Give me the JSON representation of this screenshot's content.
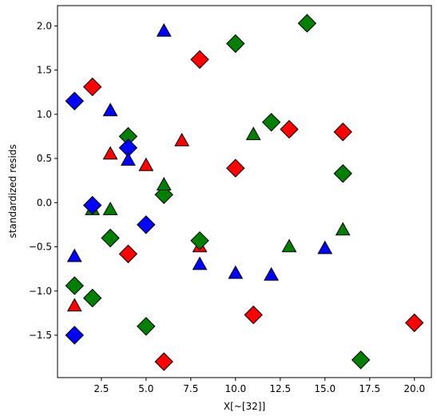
{
  "chart_data": {
    "type": "scatter",
    "xlabel": "X[~[32]]",
    "ylabel": "standardized resids",
    "xlim": [
      0.05,
      20.95
    ],
    "ylim": [
      -1.98,
      2.23
    ],
    "xticks": [
      2.5,
      5.0,
      7.5,
      10.0,
      12.5,
      15.0,
      17.5,
      20.0
    ],
    "xtick_labels": [
      "2.5",
      "5.0",
      "7.5",
      "10.0",
      "12.5",
      "15.0",
      "17.5",
      "20.0"
    ],
    "yticks": [
      -1.5,
      -1.0,
      -0.5,
      0.0,
      0.5,
      1.0,
      1.5,
      2.0
    ],
    "ytick_labels": [
      "−1.5",
      "−1.0",
      "−0.5",
      "0.0",
      "0.5",
      "1.0",
      "1.5",
      "2.0"
    ],
    "grid": false,
    "series": [
      {
        "color": "#ff0000",
        "marker": "diamond",
        "points": [
          [
            2,
            1.31
          ],
          [
            8,
            1.62
          ],
          [
            13,
            0.83
          ],
          [
            16,
            0.8
          ],
          [
            10,
            0.39
          ],
          [
            4,
            -0.58
          ],
          [
            11,
            -1.27
          ],
          [
            6,
            -1.8
          ],
          [
            20,
            -1.36
          ]
        ]
      },
      {
        "color": "#ff0000",
        "marker": "triangle",
        "points": [
          [
            3,
            0.55
          ],
          [
            5,
            0.42
          ],
          [
            7,
            0.7
          ],
          [
            8,
            -0.5
          ],
          [
            1,
            -1.17
          ]
        ]
      },
      {
        "color": "#008000",
        "marker": "diamond",
        "points": [
          [
            14,
            2.03
          ],
          [
            10,
            1.8
          ],
          [
            12,
            0.91
          ],
          [
            4,
            0.75
          ],
          [
            16,
            0.33
          ],
          [
            6,
            0.09
          ],
          [
            3,
            -0.4
          ],
          [
            8,
            -0.43
          ],
          [
            1,
            -0.94
          ],
          [
            2,
            -1.08
          ],
          [
            5,
            -1.4
          ],
          [
            17,
            -1.78
          ]
        ]
      },
      {
        "color": "#008000",
        "marker": "triangle",
        "points": [
          [
            11,
            0.77
          ],
          [
            6,
            0.2
          ],
          [
            2,
            -0.08
          ],
          [
            3,
            -0.08
          ],
          [
            16,
            -0.31
          ],
          [
            13,
            -0.5
          ]
        ]
      },
      {
        "color": "#0000ff",
        "marker": "diamond",
        "points": [
          [
            1,
            1.15
          ],
          [
            4,
            0.62
          ],
          [
            2,
            -0.03
          ],
          [
            5,
            -0.25
          ],
          [
            1,
            -1.5
          ]
        ]
      },
      {
        "color": "#0000ff",
        "marker": "triangle",
        "points": [
          [
            6,
            1.94
          ],
          [
            3,
            1.04
          ],
          [
            4,
            0.48
          ],
          [
            1,
            -0.61
          ],
          [
            8,
            -0.7
          ],
          [
            10,
            -0.8
          ],
          [
            12,
            -0.82
          ],
          [
            15,
            -0.52
          ]
        ]
      }
    ]
  }
}
